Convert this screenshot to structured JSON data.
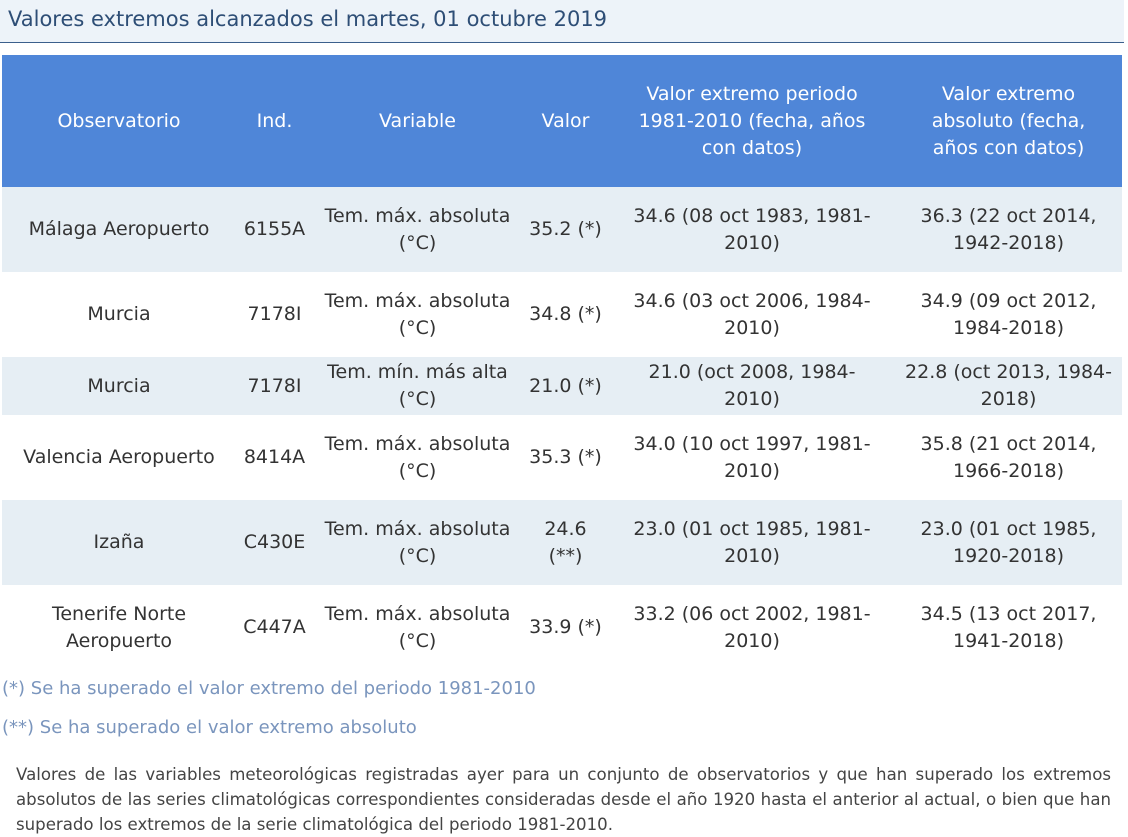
{
  "page": {
    "title": "Valores extremos alcanzados el martes, 01 octubre 2019"
  },
  "table": {
    "headers": [
      "Observatorio",
      "Ind.",
      "Variable",
      "Valor",
      "Valor extremo periodo 1981-2010 (fecha, años con datos)",
      "Valor extremo absoluto (fecha, años con datos)"
    ],
    "rows": [
      {
        "observatorio": "Málaga Aeropuerto",
        "ind": "6155A",
        "variable": "Tem. máx. absoluta (°C)",
        "valor": "35.2 (*)",
        "periodo": "34.6 (08 oct 1983, 1981-2010)",
        "absoluto": "36.3 (22 oct 2014, 1942-2018)"
      },
      {
        "observatorio": "Murcia",
        "ind": "7178I",
        "variable": "Tem. máx. absoluta (°C)",
        "valor": "34.8 (*)",
        "periodo": "34.6 (03 oct 2006, 1984-2010)",
        "absoluto": "34.9 (09 oct 2012, 1984-2018)"
      },
      {
        "observatorio": "Murcia",
        "ind": "7178I",
        "variable": "Tem. mín. más alta (°C)",
        "valor": "21.0 (*)",
        "periodo": "21.0 (oct 2008, 1984-2010)",
        "absoluto": "22.8 (oct 2013, 1984-2018)"
      },
      {
        "observatorio": "Valencia Aeropuerto",
        "ind": "8414A",
        "variable": "Tem. máx. absoluta (°C)",
        "valor": "35.3 (*)",
        "periodo": "34.0 (10 oct 1997, 1981-2010)",
        "absoluto": "35.8 (21 oct 2014, 1966-2018)"
      },
      {
        "observatorio": "Izaña",
        "ind": "C430E",
        "variable": "Tem. máx. absoluta (°C)",
        "valor": "24.6 (**)",
        "periodo": "23.0 (01 oct 1985, 1981-2010)",
        "absoluto": "23.0 (01 oct 1985, 1920-2018)"
      },
      {
        "observatorio": "Tenerife Norte Aeropuerto",
        "ind": "C447A",
        "variable": "Tem. máx. absoluta (°C)",
        "valor": "33.9 (*)",
        "periodo": "33.2 (06 oct 2002, 1981-2010)",
        "absoluto": "34.5 (13 oct 2017, 1941-2018)"
      }
    ]
  },
  "notes": {
    "single": "(*) Se ha superado el valor extremo del periodo 1981-2010",
    "double": "(**) Se ha superado el valor extremo absoluto"
  },
  "description": "Valores de las variables meteorológicas registradas ayer para un conjunto de observatorios y que han superado los extremos absolutos de las series climatológicas correspondientes consideradas desde el año 1920 hasta el anterior al actual, o bien que han superado los extremos de la serie climatológica del periodo 1981-2010.",
  "colors": {
    "header_bg": "#4f86d8",
    "row_alt_bg": "#e6eef4",
    "title_color": "#2e4e76",
    "note_color": "#7a95bd"
  }
}
